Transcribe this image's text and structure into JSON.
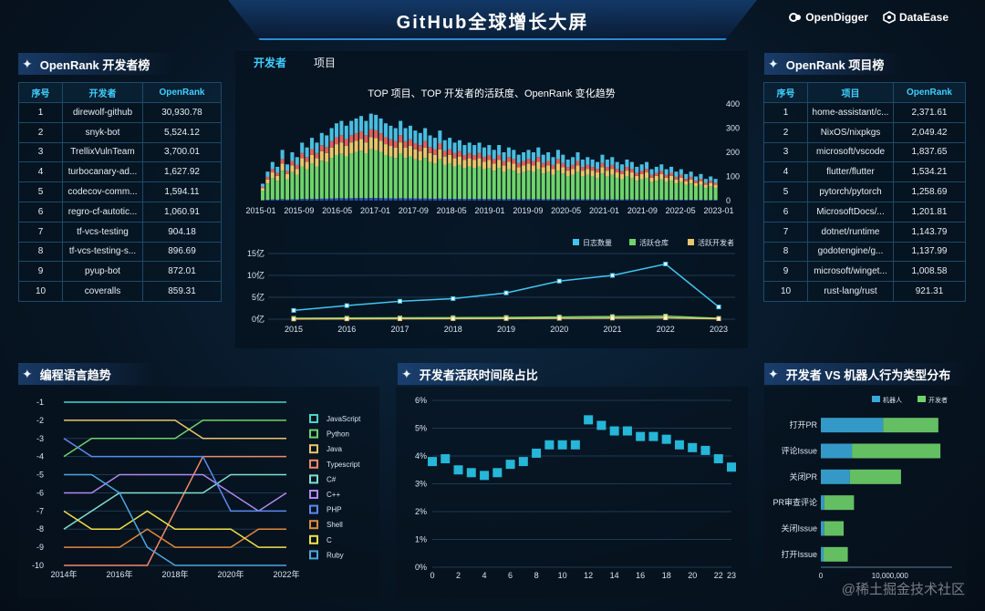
{
  "header": {
    "title": "GitHub全球增长大屏",
    "logo_left": "OpenDigger",
    "logo_right": "DataEase"
  },
  "dev_rank": {
    "title": "OpenRank 开发者榜",
    "columns": [
      "序号",
      "开发者",
      "OpenRank"
    ],
    "rows": [
      [
        "1",
        "direwolf-github",
        "30,930.78"
      ],
      [
        "2",
        "snyk-bot",
        "5,524.12"
      ],
      [
        "3",
        "TrellixVulnTeam",
        "3,700.01"
      ],
      [
        "4",
        "turbocanary-ad...",
        "1,627.92"
      ],
      [
        "5",
        "codecov-comm...",
        "1,594.11"
      ],
      [
        "6",
        "regro-cf-autotic...",
        "1,060.91"
      ],
      [
        "7",
        "tf-vcs-testing",
        "904.18"
      ],
      [
        "8",
        "tf-vcs-testing-s...",
        "896.69"
      ],
      [
        "9",
        "pyup-bot",
        "872.01"
      ],
      [
        "10",
        "coveralls",
        "859.31"
      ]
    ]
  },
  "repo_rank": {
    "title": "OpenRank 项目榜",
    "columns": [
      "序号",
      "项目",
      "OpenRank"
    ],
    "rows": [
      [
        "1",
        "home-assistant/c...",
        "2,371.61"
      ],
      [
        "2",
        "NixOS/nixpkgs",
        "2,049.42"
      ],
      [
        "3",
        "microsoft/vscode",
        "1,837.65"
      ],
      [
        "4",
        "flutter/flutter",
        "1,534.21"
      ],
      [
        "5",
        "pytorch/pytorch",
        "1,258.69"
      ],
      [
        "6",
        "MicrosoftDocs/...",
        "1,201.81"
      ],
      [
        "7",
        "dotnet/runtime",
        "1,143.79"
      ],
      [
        "8",
        "godotengine/g...",
        "1,137.99"
      ],
      [
        "9",
        "microsoft/winget...",
        "1,008.58"
      ],
      [
        "10",
        "rust-lang/rust",
        "921.31"
      ]
    ]
  },
  "center": {
    "tabs": [
      "开发者",
      "项目"
    ],
    "active_tab": 0
  },
  "chart_data": [
    {
      "type": "bar",
      "title": "TOP 项目、TOP 开发者的活跃度、OpenRank 变化趋势",
      "x_tick_labels": [
        "2015-01",
        "2015-09",
        "2016-05",
        "2017-01",
        "2017-09",
        "2018-05",
        "2019-01",
        "2019-09",
        "2020-05",
        "2021-01",
        "2021-09",
        "2022-05",
        "2023-01"
      ],
      "y_tick_labels": [
        "0",
        "100",
        "200",
        "300",
        "400"
      ],
      "ylim": [
        0,
        400
      ],
      "series_colors": [
        "#2c4bc0",
        "#6fd36a",
        "#e8c66a",
        "#e0605a",
        "#4bbde0"
      ],
      "totals": [
        70,
        120,
        160,
        140,
        210,
        150,
        200,
        180,
        240,
        220,
        260,
        240,
        280,
        270,
        300,
        320,
        330,
        310,
        330,
        340,
        350,
        330,
        360,
        355,
        340,
        320,
        310,
        300,
        330,
        300,
        310,
        290,
        280,
        300,
        270,
        260,
        290,
        250,
        260,
        240,
        250,
        230,
        240,
        230,
        240,
        220,
        230,
        210,
        230,
        200,
        220,
        210,
        190,
        200,
        210,
        200,
        220,
        190,
        200,
        180,
        210,
        190,
        170,
        180,
        200,
        170,
        180,
        170,
        160,
        190,
        170,
        180,
        160,
        150,
        170,
        160,
        140,
        150,
        160,
        130,
        140,
        150,
        130,
        140,
        120,
        130,
        110,
        120,
        100,
        110,
        90,
        100,
        90
      ]
    },
    {
      "type": "line",
      "categories": [
        "2015",
        "2016",
        "2017",
        "2018",
        "2019",
        "2020",
        "2021",
        "2022",
        "2023"
      ],
      "y_tick_labels": [
        "0亿",
        "5亿",
        "10亿",
        "15亿"
      ],
      "ylim": [
        0,
        15
      ],
      "series": [
        {
          "name": "日志数量",
          "color": "#3fc6f0",
          "values": [
            2.0,
            3.1,
            4.1,
            4.7,
            6.0,
            8.7,
            10.0,
            12.6,
            2.8
          ]
        },
        {
          "name": "活跃仓库",
          "color": "#6fd36a",
          "values": [
            0.2,
            0.25,
            0.3,
            0.35,
            0.4,
            0.5,
            0.6,
            0.7,
            0.2
          ]
        },
        {
          "name": "活跃开发者",
          "color": "#e8c66a",
          "values": [
            0.05,
            0.08,
            0.1,
            0.12,
            0.15,
            0.2,
            0.25,
            0.3,
            0.1
          ]
        }
      ]
    },
    {
      "type": "line",
      "title": "编程语言趋势",
      "categories": [
        "2014年",
        "2015年",
        "2016年",
        "2017年",
        "2018年",
        "2019年",
        "2020年",
        "2021年",
        "2022年"
      ],
      "x_tick_labels": [
        "2014年",
        "2016年",
        "2018年",
        "2020年",
        "2022年"
      ],
      "y_tick_labels": [
        "-1",
        "-2",
        "-3",
        "-4",
        "-5",
        "-6",
        "-7",
        "-8",
        "-9",
        "-10"
      ],
      "ylim": [
        -10,
        -1
      ],
      "series": [
        {
          "name": "JavaScript",
          "color": "#46d6c8",
          "values": [
            -1,
            -1,
            -1,
            -1,
            -1,
            -1,
            -1,
            -1,
            -1
          ]
        },
        {
          "name": "Python",
          "color": "#6fd36a",
          "values": [
            -4,
            -3,
            -3,
            -3,
            -3,
            -2,
            -2,
            -2,
            -2
          ]
        },
        {
          "name": "Java",
          "color": "#e8c66a",
          "values": [
            -2,
            -2,
            -2,
            -2,
            -2,
            -3,
            -3,
            -3,
            -3
          ]
        },
        {
          "name": "Typescript",
          "color": "#f08a6a",
          "values": [
            -10,
            -10,
            -10,
            -10,
            -7,
            -4,
            -4,
            -4,
            -4
          ]
        },
        {
          "name": "C#",
          "color": "#7fe0d0",
          "values": [
            -8,
            -7,
            -6,
            -6,
            -6,
            -6,
            -5,
            -5,
            -5
          ]
        },
        {
          "name": "C++",
          "color": "#b08af0",
          "values": [
            -6,
            -6,
            -5,
            -5,
            -5,
            -5,
            -6,
            -7,
            -6
          ]
        },
        {
          "name": "PHP",
          "color": "#5a8af0",
          "values": [
            -3,
            -4,
            -4,
            -4,
            -4,
            -4,
            -7,
            -7,
            -7
          ]
        },
        {
          "name": "Shell",
          "color": "#e08a3a",
          "values": [
            -9,
            -9,
            -9,
            -8,
            -9,
            -9,
            -9,
            -8,
            -8
          ]
        },
        {
          "name": "C",
          "color": "#f0e048",
          "values": [
            -7,
            -8,
            -8,
            -7,
            -8,
            -8,
            -8,
            -9,
            -9
          ]
        },
        {
          "name": "Ruby",
          "color": "#4aa8e0",
          "values": [
            -5,
            -5,
            -6,
            -9,
            -10,
            -10,
            -10,
            -10,
            -10
          ]
        }
      ]
    },
    {
      "type": "scatter",
      "title": "开发者活跃时间段占比",
      "x": [
        0,
        1,
        2,
        3,
        4,
        5,
        6,
        7,
        8,
        9,
        10,
        11,
        12,
        13,
        14,
        15,
        16,
        17,
        18,
        19,
        20,
        21,
        22,
        23
      ],
      "y": [
        3.8,
        3.9,
        3.5,
        3.4,
        3.3,
        3.4,
        3.7,
        3.8,
        4.1,
        4.4,
        4.4,
        4.4,
        5.3,
        5.1,
        4.9,
        4.9,
        4.7,
        4.7,
        4.6,
        4.4,
        4.3,
        4.2,
        3.9,
        3.6
      ],
      "x_tick_labels": [
        "0",
        "2",
        "4",
        "6",
        "8",
        "10",
        "12",
        "14",
        "16",
        "18",
        "20",
        "22",
        "23"
      ],
      "y_tick_labels": [
        "0%",
        "1%",
        "2%",
        "3%",
        "4%",
        "5%",
        "6%"
      ],
      "ylim": [
        0,
        6
      ],
      "color": "#25b6d8"
    },
    {
      "type": "bar",
      "orientation": "horizontal",
      "title": "开发者 VS 机器人行为类型分布",
      "categories": [
        "打开PR",
        "评论Issue",
        "关闭PR",
        "PR审查评论",
        "关闭Issue",
        "打开Issue"
      ],
      "x_tick_labels": [
        "0",
        "10,000,000"
      ],
      "xlim": [
        0,
        19000000
      ],
      "series": [
        {
          "name": "机器人",
          "color": "#3aa8d8",
          "values": [
            9000000,
            4500000,
            4200000,
            500000,
            500000,
            400000
          ]
        },
        {
          "name": "开发者",
          "color": "#6fd36a",
          "values": [
            8000000,
            12800000,
            7400000,
            4300000,
            2800000,
            3500000
          ]
        }
      ]
    }
  ],
  "watermark": "@稀土掘金技术社区"
}
